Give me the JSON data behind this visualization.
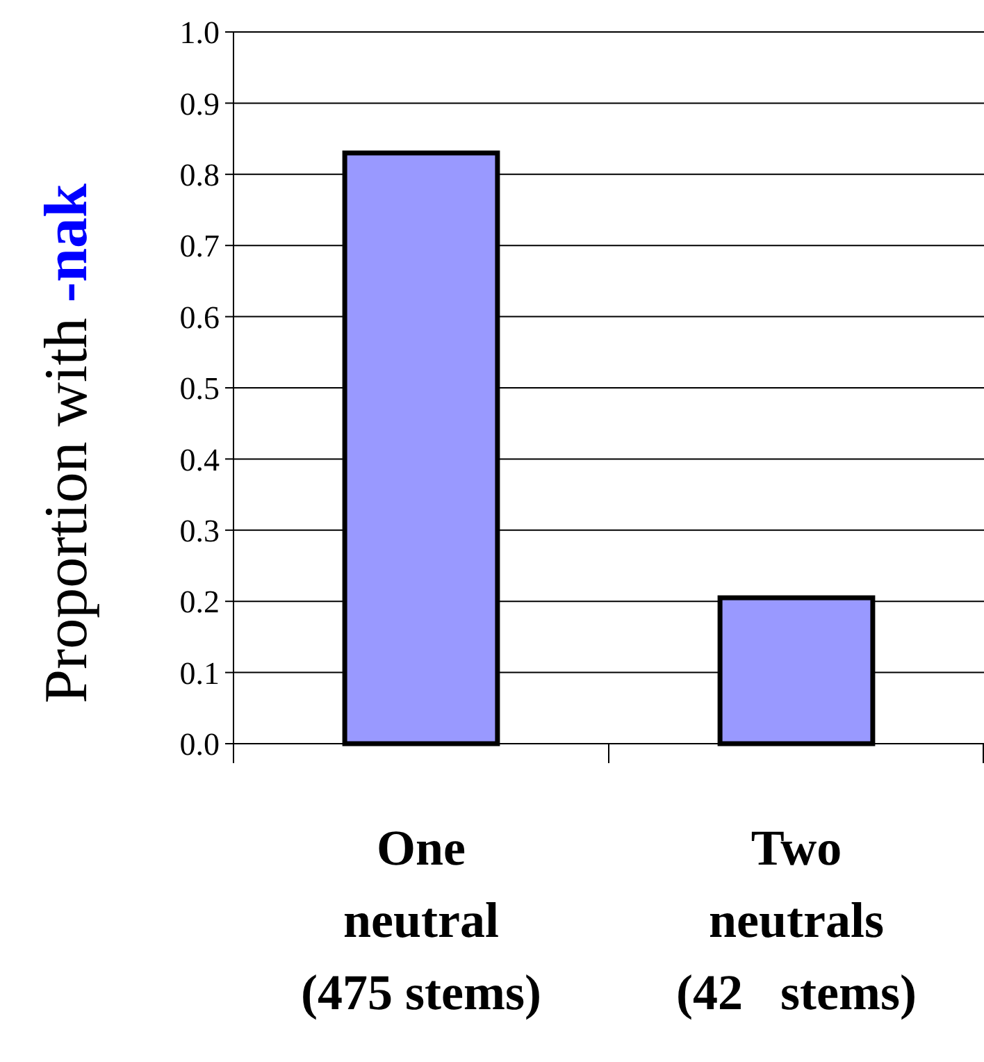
{
  "chart_data": {
    "type": "bar",
    "ylabel": "Proportion with -nak",
    "categories": [
      "One\nneutral\n(475 stems)",
      "Two\nneutrals\n(42   stems)"
    ],
    "values": [
      0.83,
      0.205
    ],
    "color": "#9999ff",
    "ylim": [
      0,
      1
    ],
    "yticks": [
      {
        "value": 0,
        "label": "0.0"
      },
      {
        "value": 0.1,
        "label": "0.1"
      },
      {
        "value": 0.2,
        "label": "0.2"
      },
      {
        "value": 0.3,
        "label": "0.3"
      },
      {
        "value": 0.4,
        "label": "0.4"
      },
      {
        "value": 0.5,
        "label": "0.5"
      },
      {
        "value": 0.6,
        "label": "0.6"
      },
      {
        "value": 0.7,
        "label": "0.7"
      },
      {
        "value": 0.8,
        "label": "0.8"
      },
      {
        "value": 0.9,
        "label": "0.9"
      },
      {
        "value": 1,
        "label": "1.0"
      }
    ],
    "grid": "y"
  }
}
